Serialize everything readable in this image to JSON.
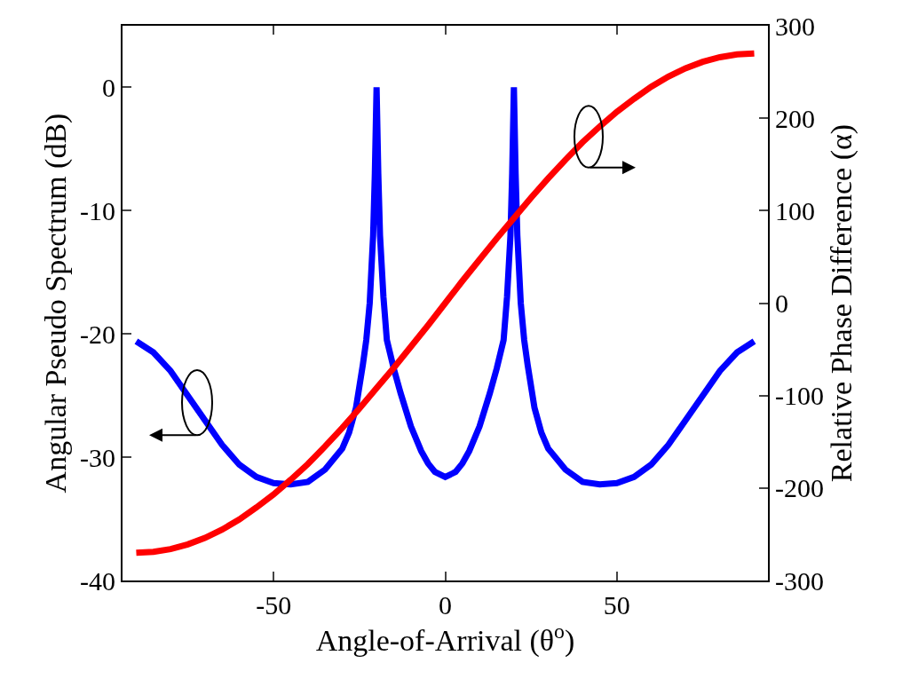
{
  "chart_data": {
    "type": "line",
    "xlabel": "Angle-of-Arrival (θ$^{o}$)",
    "ylabel": "Angular Pseudo Spectrum (dB)",
    "y2label": "Relative Phase Difference (α)",
    "xlim": [
      -94,
      94
    ],
    "xticks": [
      -50,
      0,
      50
    ],
    "ylim": [
      -40,
      5
    ],
    "yticks": [
      -40,
      -30,
      -20,
      -10,
      0
    ],
    "y2lim": [
      -300,
      300
    ],
    "y2ticks": [
      -300,
      -200,
      -100,
      0,
      100,
      200,
      300
    ],
    "marker": "none",
    "line_style": "solid",
    "series": [
      {
        "color": "#0000ff",
        "x": [
          -90,
          -85,
          -80,
          -75,
          -70,
          -65,
          -60,
          -55,
          -50,
          -45,
          -40,
          -35,
          -30,
          -28,
          -26,
          -24,
          -23,
          -22,
          -21,
          -20.5,
          -20,
          -19.5,
          -19,
          -18,
          -17,
          -15,
          -13,
          -10,
          -7,
          -5,
          -3,
          0,
          3,
          5,
          7,
          10,
          13,
          15,
          17,
          18,
          19,
          19.5,
          20,
          20.5,
          21,
          22,
          23,
          24,
          26,
          28,
          30,
          35,
          40,
          45,
          50,
          55,
          60,
          65,
          70,
          75,
          80,
          85,
          90
        ],
        "values": [
          -20.6,
          -21.5,
          -23,
          -25,
          -27,
          -29,
          -30.6,
          -31.6,
          -32.1,
          -32.2,
          -32,
          -31,
          -29.3,
          -28,
          -26,
          -22.5,
          -20.5,
          -17.5,
          -12,
          -7,
          0,
          -7,
          -12,
          -17,
          -20.5,
          -22.8,
          -24.8,
          -27.5,
          -29.5,
          -30.5,
          -31.2,
          -31.6,
          -31.2,
          -30.5,
          -29.5,
          -27.5,
          -24.8,
          -22.8,
          -20.5,
          -17,
          -12,
          -7,
          0,
          -7,
          -12,
          -17.5,
          -20.5,
          -22.5,
          -26,
          -28,
          -29.3,
          -31,
          -32,
          -32.2,
          -32.1,
          -31.6,
          -30.6,
          -29,
          -27,
          -25,
          -23,
          -21.5,
          -20.6
        ]
      },
      {
        "color": "#ff0000",
        "axis": "y2",
        "x": [
          -90,
          -85,
          -80,
          -75,
          -70,
          -65,
          -60,
          -55,
          -50,
          -45,
          -40,
          -35,
          -30,
          -25,
          -20,
          -15,
          -10,
          -5,
          0,
          5,
          10,
          15,
          20,
          25,
          30,
          35,
          40,
          45,
          50,
          55,
          60,
          65,
          70,
          75,
          80,
          85,
          90
        ],
        "values": [
          -270,
          -269,
          -266,
          -261,
          -254,
          -245,
          -234,
          -221,
          -207,
          -191,
          -174,
          -155,
          -135,
          -114,
          -92,
          -70,
          -47,
          -24,
          0,
          24,
          47,
          70,
          92,
          114,
          135,
          155,
          174,
          191,
          207,
          221,
          234,
          245,
          254,
          261,
          266,
          269,
          270
        ]
      }
    ]
  }
}
